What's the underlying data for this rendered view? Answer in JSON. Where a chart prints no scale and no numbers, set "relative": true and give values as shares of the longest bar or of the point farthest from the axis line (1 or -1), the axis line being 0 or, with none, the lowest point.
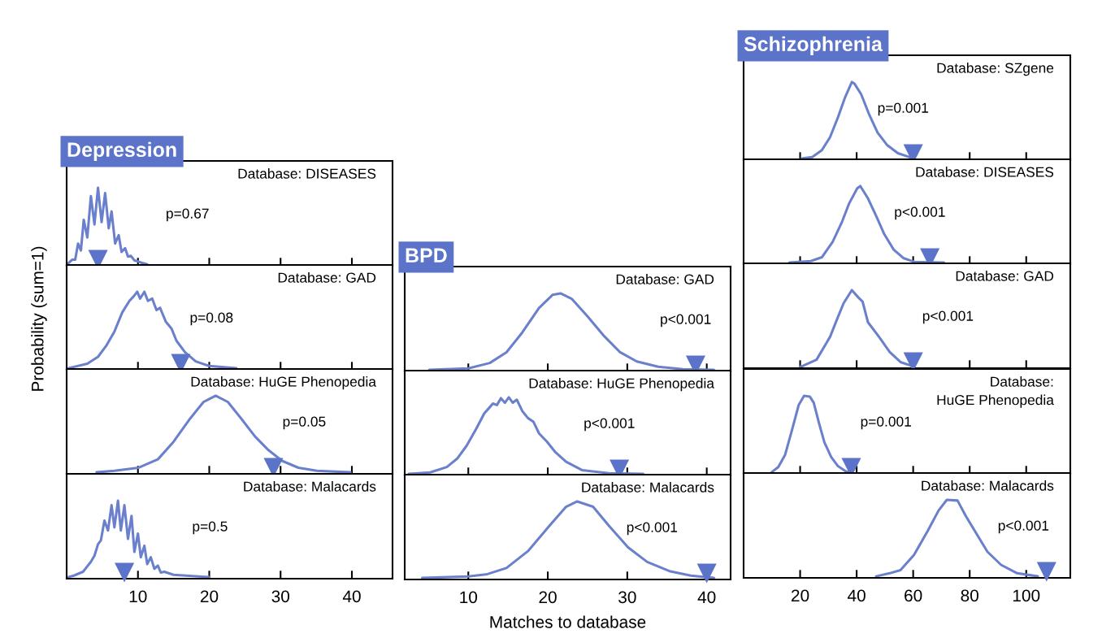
{
  "chart_data": [
    {
      "type": "line",
      "relative": true,
      "title": "Depression",
      "ylabel": "Probability (sum=1)",
      "xlim": [
        0,
        45.7
      ],
      "xticks": [
        10,
        20,
        30,
        40
      ],
      "tick_labels": false,
      "annotations": [
        "Database: DISEASES",
        "p=0.67"
      ],
      "series": [
        {
          "color": "#6b80cc",
          "x": [
            0.2,
            0.8,
            1.2,
            1.6,
            2.0,
            2.4,
            2.9,
            3.4,
            3.9,
            4.4,
            4.9,
            5.4,
            5.9,
            6.3,
            6.8,
            7.3,
            7.7,
            8.2,
            8.6,
            9.0,
            9.5,
            9.9,
            10.5,
            11.3
          ],
          "values": [
            0.01,
            0.06,
            0.06,
            0.27,
            0.18,
            0.58,
            0.35,
            0.89,
            0.52,
            1.0,
            0.55,
            0.93,
            0.47,
            0.69,
            0.27,
            0.38,
            0.16,
            0.21,
            0.1,
            0.11,
            0.05,
            0.04,
            0.02,
            0.0
          ]
        },
        {
          "type": "scatter",
          "color": "#5b73c8",
          "marker": "triangle",
          "x": [
            4.4
          ],
          "values": [
            0.06
          ]
        }
      ]
    },
    {
      "type": "line",
      "relative": true,
      "xlim": [
        0,
        45.7
      ],
      "xticks": [
        10,
        20,
        30,
        40
      ],
      "tick_labels": false,
      "annotations": [
        "Database: GAD",
        "p=0.08"
      ],
      "series": [
        {
          "color": "#6b80cc",
          "x": [
            0.2,
            2.9,
            4.4,
            5.6,
            6.7,
            7.8,
            8.8,
            9.4,
            9.9,
            10.3,
            10.9,
            11.4,
            12.0,
            12.6,
            13.1,
            13.9,
            14.7,
            15.4,
            16.6,
            18.1,
            20.0,
            23.8
          ],
          "values": [
            0,
            0.06,
            0.15,
            0.3,
            0.48,
            0.73,
            0.88,
            0.94,
            1.0,
            0.91,
            1.0,
            0.88,
            0.91,
            0.76,
            0.79,
            0.61,
            0.52,
            0.36,
            0.21,
            0.09,
            0.03,
            0
          ]
        },
        {
          "type": "scatter",
          "color": "#5b73c8",
          "marker": "triangle",
          "x": [
            16.0
          ],
          "values": [
            0.06
          ]
        }
      ]
    },
    {
      "type": "line",
      "relative": true,
      "xlim": [
        0,
        45.7
      ],
      "xticks": [
        10,
        20,
        30,
        40
      ],
      "tick_labels": false,
      "annotations": [
        "Database: HuGE Phenopedia",
        "p=0.05"
      ],
      "series": [
        {
          "color": "#6b80cc",
          "x": [
            4.2,
            6.7,
            10.1,
            12.8,
            15.0,
            17.3,
            19.2,
            20.9,
            22.6,
            24.5,
            26.4,
            28.3,
            30.2,
            32.5,
            35.1,
            39.8
          ],
          "values": [
            0,
            0.02,
            0.06,
            0.17,
            0.4,
            0.7,
            0.92,
            1.0,
            0.92,
            0.7,
            0.47,
            0.29,
            0.15,
            0.06,
            0.02,
            0
          ]
        },
        {
          "type": "scatter",
          "color": "#5b73c8",
          "marker": "triangle",
          "x": [
            29.0
          ],
          "values": [
            0.06
          ]
        }
      ]
    },
    {
      "type": "line",
      "relative": true,
      "xlim": [
        0,
        45.7
      ],
      "xticks": [
        10,
        20,
        30,
        40
      ],
      "tick_labels": "x",
      "annotations": [
        "Database: Malacards",
        "p=0.5"
      ],
      "series": [
        {
          "color": "#6b80cc",
          "x": [
            0.2,
            1.0,
            2.3,
            2.8,
            3.4,
            3.9,
            4.4,
            4.8,
            5.3,
            5.8,
            6.3,
            6.7,
            7.2,
            7.6,
            8.1,
            8.6,
            9.1,
            9.5,
            10.0,
            10.4,
            10.9,
            11.3,
            11.8,
            12.3,
            12.8,
            13.2,
            13.7,
            15.0,
            20.0
          ],
          "values": [
            0,
            0.02,
            0.07,
            0.13,
            0.2,
            0.28,
            0.43,
            0.48,
            0.74,
            0.61,
            0.94,
            0.65,
            1.0,
            0.61,
            0.94,
            0.5,
            0.8,
            0.33,
            0.57,
            0.26,
            0.41,
            0.17,
            0.26,
            0.11,
            0.15,
            0.06,
            0.07,
            0.03,
            0
          ]
        },
        {
          "type": "scatter",
          "color": "#5b73c8",
          "marker": "triangle",
          "x": [
            8.1
          ],
          "values": [
            0.06
          ]
        }
      ]
    },
    {
      "type": "line",
      "relative": true,
      "title": "BPD",
      "xlim": [
        2,
        43
      ],
      "xticks": [
        10,
        20,
        30,
        40
      ],
      "tick_labels": false,
      "annotations": [
        "Database: GAD",
        "p<0.001"
      ],
      "series": [
        {
          "color": "#6b80cc",
          "x": [
            5.1,
            10,
            12.7,
            14.8,
            16.8,
            18.9,
            20.6,
            21.6,
            23.0,
            25.0,
            27.1,
            29.1,
            31.2,
            33.9,
            37.0,
            40.9
          ],
          "values": [
            0,
            0.02,
            0.09,
            0.23,
            0.49,
            0.81,
            0.98,
            1.0,
            0.93,
            0.7,
            0.44,
            0.23,
            0.11,
            0.04,
            0.01,
            0
          ]
        },
        {
          "type": "scatter",
          "color": "#5b73c8",
          "marker": "triangle",
          "x": [
            38.6
          ],
          "values": [
            0.06
          ]
        }
      ]
    },
    {
      "type": "line",
      "relative": true,
      "xlim": [
        2,
        43
      ],
      "xticks": [
        10,
        20,
        30,
        40
      ],
      "tick_labels": false,
      "annotations": [
        "Database: HuGE Phenopedia",
        "p<0.001"
      ],
      "series": [
        {
          "color": "#6b80cc",
          "x": [
            2.5,
            5.2,
            7.3,
            8.6,
            9.8,
            11.0,
            12.0,
            12.6,
            13.1,
            13.6,
            14.1,
            14.6,
            15.1,
            15.6,
            16.1,
            16.8,
            17.5,
            18.2,
            18.9,
            19.9,
            20.9,
            22.3,
            24.3,
            27.7,
            32.0
          ],
          "values": [
            0,
            0.02,
            0.09,
            0.2,
            0.37,
            0.59,
            0.79,
            0.86,
            0.92,
            0.9,
            0.99,
            0.93,
            1.0,
            0.93,
            0.97,
            0.82,
            0.73,
            0.68,
            0.53,
            0.42,
            0.29,
            0.16,
            0.05,
            0.01,
            0
          ]
        },
        {
          "type": "scatter",
          "color": "#5b73c8",
          "marker": "triangle",
          "x": [
            29.0
          ],
          "values": [
            0.06
          ]
        }
      ]
    },
    {
      "type": "line",
      "relative": true,
      "xlabel": "Matches to database",
      "xlim": [
        2,
        43
      ],
      "xticks": [
        10,
        20,
        30,
        40
      ],
      "tick_labels": "x",
      "annotations": [
        "Database: Malacards",
        "p<0.001"
      ],
      "series": [
        {
          "color": "#6b80cc",
          "x": [
            4.2,
            10,
            12.4,
            14.8,
            17.5,
            20.2,
            22.3,
            23.7,
            25.7,
            27.7,
            30.1,
            32.5,
            35.3,
            38.0,
            40.9
          ],
          "values": [
            0,
            0.02,
            0.05,
            0.13,
            0.35,
            0.68,
            0.93,
            1.0,
            0.93,
            0.68,
            0.4,
            0.21,
            0.09,
            0.03,
            0
          ]
        },
        {
          "type": "scatter",
          "color": "#5b73c8",
          "marker": "triangle",
          "x": [
            40.0
          ],
          "values": [
            0.06
          ]
        }
      ]
    },
    {
      "type": "line",
      "relative": true,
      "title": "Schizophrenia",
      "xlim": [
        0,
        115.6
      ],
      "xticks": [
        20,
        40,
        60,
        80,
        100
      ],
      "tick_labels": false,
      "annotations": [
        "Database: SZgene",
        "p=0.001"
      ],
      "series": [
        {
          "color": "#6b80cc",
          "x": [
            20.5,
            24.3,
            27.7,
            30.6,
            33.4,
            35.9,
            38.3,
            39.2,
            41.6,
            44.5,
            47.4,
            50.7,
            54.6,
            59.4,
            60.3
          ],
          "values": [
            0,
            0.02,
            0.11,
            0.28,
            0.54,
            0.8,
            1.0,
            0.98,
            0.84,
            0.57,
            0.34,
            0.18,
            0.07,
            0.01,
            0
          ]
        },
        {
          "type": "scatter",
          "color": "#5b73c8",
          "marker": "triangle",
          "x": [
            60.0
          ],
          "values": [
            0.06
          ]
        }
      ]
    },
    {
      "type": "line",
      "relative": true,
      "xlim": [
        0,
        115.6
      ],
      "xticks": [
        20,
        40,
        60,
        80,
        100
      ],
      "tick_labels": false,
      "annotations": [
        "Database: DISEASES",
        "p<0.001"
      ],
      "series": [
        {
          "color": "#6b80cc",
          "x": [
            16.2,
            23.8,
            27.7,
            31.5,
            34.9,
            37.3,
            40.2,
            41.3,
            44.0,
            46.9,
            49.8,
            53.1,
            56.5,
            60.3,
            70.9
          ],
          "values": [
            0,
            0.02,
            0.07,
            0.27,
            0.54,
            0.77,
            0.97,
            1.0,
            0.84,
            0.61,
            0.37,
            0.17,
            0.06,
            0.01,
            0
          ]
        },
        {
          "type": "scatter",
          "color": "#5b73c8",
          "marker": "triangle",
          "x": [
            65.9
          ],
          "values": [
            0.06
          ]
        }
      ]
    },
    {
      "type": "line",
      "relative": true,
      "xlim": [
        0,
        115.6
      ],
      "xticks": [
        20,
        40,
        60,
        80,
        100
      ],
      "tick_labels": false,
      "annotations": [
        "Database: GAD",
        "p<0.001"
      ],
      "series": [
        {
          "color": "#6b80cc",
          "x": [
            20,
            21,
            25.8,
            30.6,
            33.4,
            35.4,
            38.3,
            40.7,
            42.1,
            44,
            47.9,
            51.7,
            55.5,
            60.3
          ],
          "values": [
            0,
            0.01,
            0.09,
            0.39,
            0.65,
            0.83,
            1.0,
            0.9,
            0.85,
            0.58,
            0.39,
            0.19,
            0.06,
            0
          ]
        },
        {
          "type": "scatter",
          "color": "#5b73c8",
          "marker": "triangle",
          "x": [
            60.0
          ],
          "values": [
            0.06
          ]
        }
      ]
    },
    {
      "type": "line",
      "relative": true,
      "xlim": [
        0,
        115.6
      ],
      "xticks": [
        20,
        40,
        60,
        80,
        100
      ],
      "tick_labels": false,
      "annotations": [
        "Database:\nHuGE Phenopedia",
        "p=0.001"
      ],
      "series": [
        {
          "color": "#6b80cc",
          "x": [
            9.9,
            12.3,
            14.7,
            17.1,
            19.5,
            21.4,
            23.4,
            24.8,
            26.7,
            28.6,
            31.0,
            33.4,
            36.3,
            38.3
          ],
          "values": [
            0,
            0.07,
            0.23,
            0.55,
            0.88,
            1.0,
            0.99,
            0.91,
            0.64,
            0.39,
            0.2,
            0.08,
            0.01,
            0
          ]
        },
        {
          "type": "scatter",
          "color": "#5b73c8",
          "marker": "triangle",
          "x": [
            38.1
          ],
          "values": [
            0.06
          ]
        }
      ]
    },
    {
      "type": "line",
      "relative": true,
      "xlim": [
        0,
        115.6
      ],
      "xticks": [
        20,
        40,
        60,
        80,
        100
      ],
      "tick_labels": "x",
      "annotations": [
        "Database: Malacards",
        "p<0.001"
      ],
      "series": [
        {
          "color": "#6b80cc",
          "x": [
            46.9,
            51.7,
            55.5,
            60.3,
            65.1,
            69.0,
            71.9,
            75.7,
            78.6,
            82.5,
            86.3,
            91.1,
            96.8,
            104.1
          ],
          "values": [
            0,
            0.04,
            0.08,
            0.28,
            0.59,
            0.86,
            1.0,
            0.99,
            0.79,
            0.55,
            0.32,
            0.15,
            0.04,
            0
          ]
        },
        {
          "type": "scatter",
          "color": "#5b73c8",
          "marker": "triangle",
          "x": [
            107.2
          ],
          "values": [
            0.06
          ]
        }
      ]
    }
  ]
}
